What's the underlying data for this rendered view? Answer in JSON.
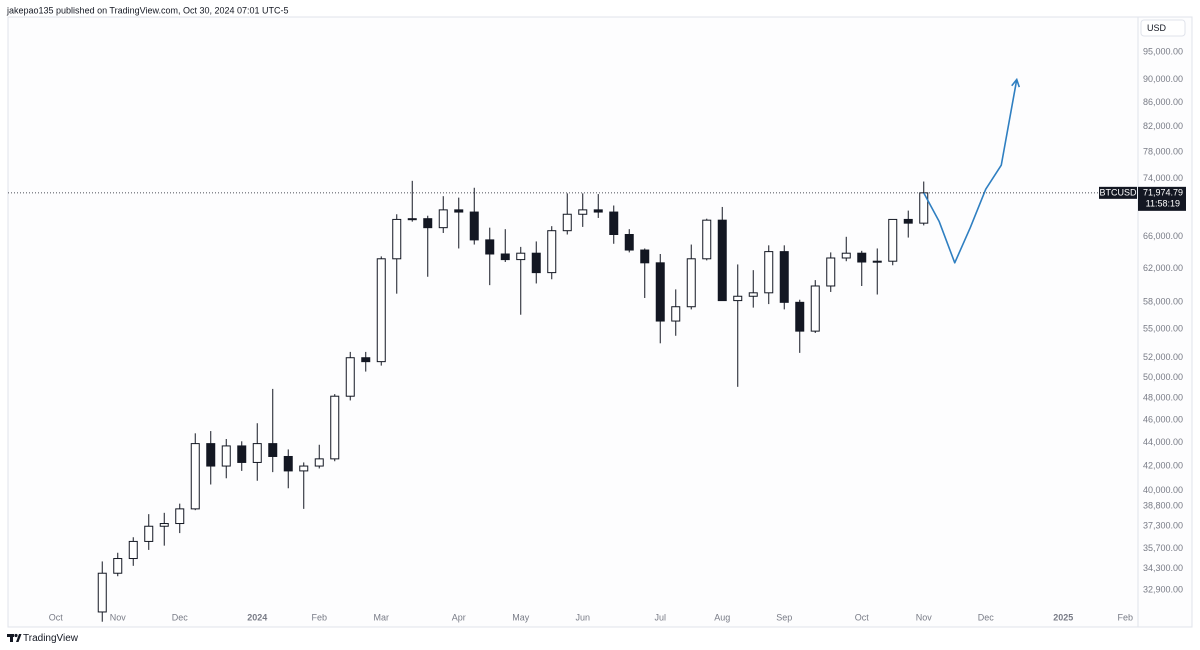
{
  "header": {
    "publisher": "jakepao135 published on TradingView.com, Oct 30, 2024 07:01 UTC-5"
  },
  "chart_data": {
    "type": "candlestick",
    "currency": "USD",
    "log_scale": true,
    "color": "#131722",
    "categories": [
      "Oct",
      null,
      null,
      null,
      "Nov",
      null,
      null,
      null,
      "Dec",
      null,
      null,
      null,
      null,
      "2024",
      null,
      null,
      null,
      "Feb",
      null,
      null,
      null,
      "Mar",
      null,
      null,
      null,
      null,
      "Apr",
      null,
      null,
      null,
      "May",
      null,
      null,
      null,
      "Jun",
      null,
      null,
      null,
      null,
      "Jul",
      null,
      null,
      null,
      "Aug",
      null,
      null,
      null,
      "Sep",
      null,
      null,
      null,
      null,
      "Oct",
      null,
      null,
      null,
      "Nov",
      null,
      null,
      null,
      "Dec",
      null,
      null,
      null,
      null,
      "2025",
      null,
      null,
      null,
      "Feb"
    ],
    "open": [
      null,
      null,
      null,
      31500,
      34000,
      35000,
      36200,
      37300,
      37500,
      38600,
      43900,
      42000,
      43700,
      42300,
      43900,
      42800,
      41600,
      42000,
      42600,
      48200,
      52000,
      51600,
      63200,
      68300,
      68400,
      67200,
      69600,
      69300,
      65600,
      63800,
      63100,
      63900,
      61500,
      66800,
      69000,
      69600,
      69300,
      66300,
      64300,
      62700,
      55900,
      57500,
      63200,
      68200,
      58200,
      58700,
      59100,
      64100,
      58000,
      54800,
      59900,
      63300,
      63900,
      62800,
      62900,
      68300,
      67800,
      null,
      null,
      null,
      null,
      null,
      null,
      null,
      null,
      null,
      null,
      null,
      null,
      null
    ],
    "high": [
      null,
      null,
      null,
      34800,
      35400,
      36500,
      38200,
      38300,
      39000,
      44800,
      45000,
      44300,
      44100,
      45700,
      48900,
      43400,
      42300,
      43800,
      48400,
      52600,
      52600,
      63500,
      69000,
      73700,
      68800,
      71500,
      71300,
      72700,
      67200,
      67000,
      64700,
      65400,
      67400,
      71900,
      71900,
      71800,
      70200,
      67000,
      64500,
      63800,
      59500,
      65000,
      68400,
      70000,
      62500,
      61800,
      64900,
      64900,
      58300,
      60600,
      64000,
      66000,
      64200,
      64500,
      68300,
      69500,
      73600,
      null,
      null,
      null,
      null,
      null,
      null,
      null,
      null,
      null,
      null,
      null,
      null,
      null
    ],
    "low": [
      null,
      null,
      null,
      30900,
      33800,
      34500,
      35600,
      35900,
      36800,
      38500,
      40500,
      41000,
      41600,
      40800,
      41500,
      40200,
      38600,
      41800,
      42400,
      47800,
      50600,
      51200,
      59000,
      68000,
      61000,
      66500,
      64500,
      65000,
      60000,
      62800,
      56600,
      60200,
      60700,
      66300,
      67300,
      68500,
      65100,
      64000,
      58500,
      53500,
      54300,
      57200,
      63000,
      58200,
      49100,
      57400,
      57800,
      57200,
      52500,
      54600,
      59200,
      62900,
      59900,
      58900,
      62400,
      65900,
      67500,
      null,
      null,
      null,
      null,
      null,
      null,
      null,
      null,
      null,
      null,
      null,
      null,
      null
    ],
    "close": [
      null,
      null,
      null,
      34000,
      35000,
      36200,
      37300,
      37500,
      38600,
      43900,
      42000,
      43700,
      42300,
      43900,
      42800,
      41600,
      42000,
      42600,
      48200,
      52000,
      51600,
      63200,
      68300,
      68400,
      67200,
      69600,
      69300,
      65600,
      63800,
      63100,
      63900,
      61500,
      66800,
      69000,
      69600,
      69300,
      66300,
      64300,
      62700,
      55900,
      57500,
      63200,
      68200,
      58200,
      58700,
      59100,
      64100,
      58000,
      54800,
      59900,
      63300,
      63900,
      62800,
      62900,
      68300,
      67800,
      71974.79,
      null,
      null,
      null,
      null,
      null,
      null,
      null,
      null,
      null,
      null,
      null,
      null,
      null
    ],
    "projection": {
      "color": "#2f7fc1",
      "values": [
        null,
        null,
        null,
        null,
        null,
        null,
        null,
        null,
        null,
        null,
        null,
        null,
        null,
        null,
        null,
        null,
        null,
        null,
        null,
        null,
        null,
        null,
        null,
        null,
        null,
        null,
        null,
        null,
        null,
        null,
        null,
        null,
        null,
        null,
        null,
        null,
        null,
        null,
        null,
        null,
        null,
        null,
        null,
        null,
        null,
        null,
        null,
        null,
        null,
        null,
        null,
        null,
        null,
        null,
        null,
        null,
        71974.79,
        68000,
        62700,
        67200,
        72500,
        76000,
        90000,
        null,
        null,
        null,
        null,
        null,
        null,
        null
      ]
    },
    "last_price": {
      "symbol": "BTCUSD",
      "value": 71974.79,
      "label": "71,974.79",
      "countdown": "11:58:19"
    },
    "ylim": [
      30580,
      101800
    ],
    "yticks": [
      {
        "value": 95000,
        "label": "95,000.00"
      },
      {
        "value": 90000,
        "label": "90,000.00"
      },
      {
        "value": 86000,
        "label": "86,000.00"
      },
      {
        "value": 82000,
        "label": "82,000.00"
      },
      {
        "value": 78000,
        "label": "78,000.00"
      },
      {
        "value": 74000,
        "label": "74,000.00"
      },
      {
        "value": 66000,
        "label": "66,000.00"
      },
      {
        "value": 62000,
        "label": "62,000.00"
      },
      {
        "value": 58000,
        "label": "58,000.00"
      },
      {
        "value": 55000,
        "label": "55,000.00"
      },
      {
        "value": 52000,
        "label": "52,000.00"
      },
      {
        "value": 50000,
        "label": "50,000.00"
      },
      {
        "value": 48000,
        "label": "48,000.00"
      },
      {
        "value": 46000,
        "label": "46,000.00"
      },
      {
        "value": 44000,
        "label": "44,000.00"
      },
      {
        "value": 42000,
        "label": "42,000.00"
      },
      {
        "value": 40000,
        "label": "40,000.00"
      },
      {
        "value": 38800,
        "label": "38,800.00"
      },
      {
        "value": 37300,
        "label": "37,300.00"
      },
      {
        "value": 35700,
        "label": "35,700.00"
      },
      {
        "value": 34300,
        "label": "34,300.00"
      },
      {
        "value": 32900,
        "label": "32,900.00"
      }
    ]
  },
  "footer": {
    "brand": "TradingView"
  }
}
